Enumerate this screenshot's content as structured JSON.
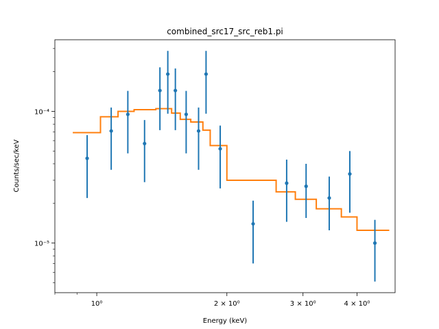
{
  "chart_data": {
    "type": "scatter",
    "title": "combined_src17_src_reb1.pi",
    "xlabel": "Energy (keV)",
    "ylabel": "Counts/sec/keV",
    "xscale": "log",
    "yscale": "log",
    "xlim": [
      0.8,
      4.9
    ],
    "ylim": [
      4.2e-06,
      0.00035
    ],
    "grid": false,
    "x_tick_labels": [
      {
        "value": 1.0,
        "label": "10⁰"
      },
      {
        "value": 2.0,
        "label": "2 × 10⁰"
      },
      {
        "value": 3.0,
        "label": "3 × 10⁰"
      },
      {
        "value": 4.0,
        "label": "4 × 10⁰"
      }
    ],
    "y_tick_labels": [
      {
        "value": 1e-05,
        "label": "10⁻⁵"
      },
      {
        "value": 0.0001,
        "label": "10⁻⁴"
      }
    ],
    "x_minor_ticks": [
      0.8,
      0.9,
      5.0
    ],
    "y_minor_ticks": [
      5e-06,
      6e-06,
      7e-06,
      8e-06,
      9e-06,
      2e-05,
      3e-05,
      4e-05,
      5e-05,
      6e-05,
      7e-05,
      8e-05,
      9e-05,
      0.0002,
      0.0003
    ],
    "series": [
      {
        "type": "errorbar",
        "color": "#1f77b4",
        "points": [
          {
            "x": 0.95,
            "y": 4.4e-05,
            "ylo": 2.2e-05,
            "yhi": 6.6e-05
          },
          {
            "x": 1.08,
            "y": 7.1e-05,
            "ylo": 3.6e-05,
            "yhi": 0.000107
          },
          {
            "x": 1.18,
            "y": 9.5e-05,
            "ylo": 4.8e-05,
            "yhi": 0.000143
          },
          {
            "x": 1.29,
            "y": 5.7e-05,
            "ylo": 2.9e-05,
            "yhi": 8.6e-05
          },
          {
            "x": 1.4,
            "y": 0.000144,
            "ylo": 7.2e-05,
            "yhi": 0.000216
          },
          {
            "x": 1.46,
            "y": 0.000192,
            "ylo": 9.6e-05,
            "yhi": 0.000288
          },
          {
            "x": 1.52,
            "y": 0.000144,
            "ylo": 7.2e-05,
            "yhi": 0.000212
          },
          {
            "x": 1.61,
            "y": 9.5e-05,
            "ylo": 4.8e-05,
            "yhi": 0.000143
          },
          {
            "x": 1.72,
            "y": 7.1e-05,
            "ylo": 3.6e-05,
            "yhi": 0.000107
          },
          {
            "x": 1.79,
            "y": 0.000192,
            "ylo": 9.6e-05,
            "yhi": 0.000288
          },
          {
            "x": 1.93,
            "y": 5.2e-05,
            "ylo": 2.6e-05,
            "yhi": 7.8e-05
          },
          {
            "x": 2.3,
            "y": 1.4e-05,
            "ylo": 7e-06,
            "yhi": 2.1e-05
          },
          {
            "x": 2.75,
            "y": 2.85e-05,
            "ylo": 1.45e-05,
            "yhi": 4.3e-05
          },
          {
            "x": 3.05,
            "y": 2.7e-05,
            "ylo": 1.55e-05,
            "yhi": 4e-05
          },
          {
            "x": 3.45,
            "y": 2.2e-05,
            "ylo": 1.25e-05,
            "yhi": 3.2e-05
          },
          {
            "x": 3.85,
            "y": 3.35e-05,
            "ylo": 1.7e-05,
            "yhi": 5e-05
          },
          {
            "x": 4.4,
            "y": 1e-05,
            "ylo": 5.1e-06,
            "yhi": 1.5e-05
          }
        ]
      },
      {
        "type": "step",
        "color": "#ff7f0e",
        "points": [
          {
            "x": 0.88,
            "y": 6.9e-05
          },
          {
            "x": 1.02,
            "y": 6.9e-05
          },
          {
            "x": 1.02,
            "y": 9.1e-05
          },
          {
            "x": 1.12,
            "y": 9.1e-05
          },
          {
            "x": 1.12,
            "y": 0.0001
          },
          {
            "x": 1.22,
            "y": 0.0001
          },
          {
            "x": 1.22,
            "y": 0.000103
          },
          {
            "x": 1.37,
            "y": 0.000103
          },
          {
            "x": 1.37,
            "y": 0.000105
          },
          {
            "x": 1.49,
            "y": 0.000105
          },
          {
            "x": 1.49,
            "y": 9.7e-05
          },
          {
            "x": 1.56,
            "y": 9.7e-05
          },
          {
            "x": 1.56,
            "y": 8.7e-05
          },
          {
            "x": 1.65,
            "y": 8.7e-05
          },
          {
            "x": 1.65,
            "y": 8.3e-05
          },
          {
            "x": 1.76,
            "y": 8.3e-05
          },
          {
            "x": 1.76,
            "y": 7.2e-05
          },
          {
            "x": 1.83,
            "y": 7.2e-05
          },
          {
            "x": 1.83,
            "y": 5.5e-05
          },
          {
            "x": 2.0,
            "y": 5.5e-05
          },
          {
            "x": 2.0,
            "y": 3e-05
          },
          {
            "x": 2.6,
            "y": 3e-05
          },
          {
            "x": 2.6,
            "y": 2.45e-05
          },
          {
            "x": 2.88,
            "y": 2.45e-05
          },
          {
            "x": 2.88,
            "y": 2.15e-05
          },
          {
            "x": 3.22,
            "y": 2.15e-05
          },
          {
            "x": 3.22,
            "y": 1.82e-05
          },
          {
            "x": 3.68,
            "y": 1.82e-05
          },
          {
            "x": 3.68,
            "y": 1.58e-05
          },
          {
            "x": 4.0,
            "y": 1.58e-05
          },
          {
            "x": 4.0,
            "y": 1.25e-05
          },
          {
            "x": 4.75,
            "y": 1.25e-05
          }
        ]
      }
    ]
  }
}
